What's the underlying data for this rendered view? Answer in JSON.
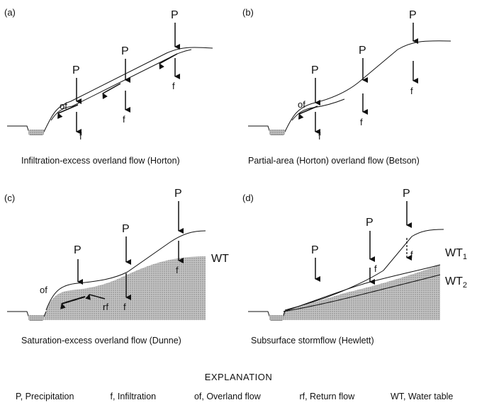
{
  "panels": [
    {
      "tag": "(a)",
      "caption": "Infiltration-excess overland flow (Horton)",
      "labels": {
        "p": "P",
        "f": "f",
        "of": "of"
      }
    },
    {
      "tag": "(b)",
      "caption": "Partial-area (Horton) overland flow (Betson)",
      "labels": {
        "p": "P",
        "f": "f",
        "of": "of"
      }
    },
    {
      "tag": "(c)",
      "caption": "Saturation-excess overland flow (Dunne)",
      "labels": {
        "p": "P",
        "f": "f",
        "of": "of",
        "rf": "rf",
        "wt": "WT"
      }
    },
    {
      "tag": "(d)",
      "caption": "Subsurface stormflow (Hewlett)",
      "labels": {
        "p": "P",
        "f": "f",
        "wt": "WT",
        "wt1_sub": "1",
        "wt2_sub": "2"
      }
    }
  ],
  "explanation": {
    "title": "EXPLANATION",
    "items": [
      "P,  Precipitation",
      "f,  Infiltration",
      "of,  Overland flow",
      "rf,  Return flow",
      "WT,  Water table"
    ]
  }
}
